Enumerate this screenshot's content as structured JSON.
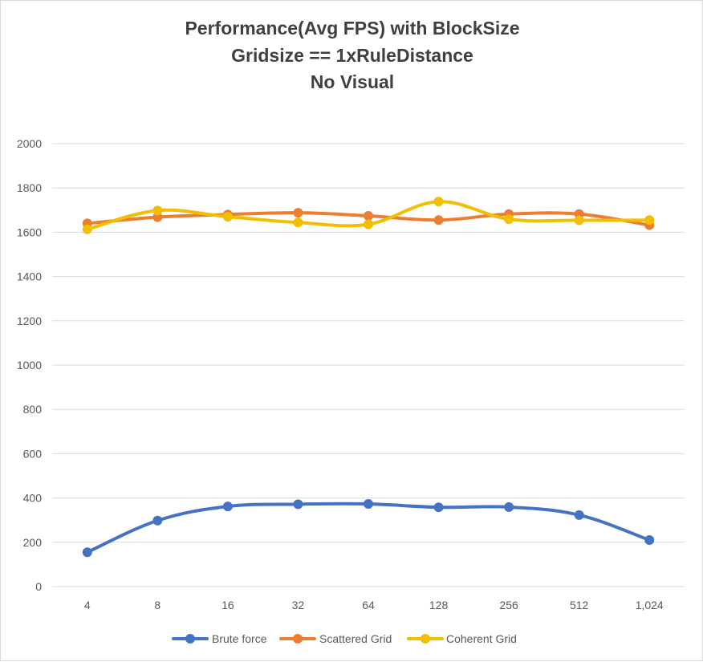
{
  "chart_data": {
    "type": "line",
    "title_lines": [
      "Performance(Avg FPS) with BlockSize",
      "Gridsize == 1xRuleDistance",
      "No Visual"
    ],
    "xlabel": "",
    "ylabel": "",
    "categories": [
      "4",
      "8",
      "16",
      "32",
      "64",
      "128",
      "256",
      "512",
      "1,024"
    ],
    "ylim": [
      0,
      2000
    ],
    "yticks": [
      "0",
      "200",
      "400",
      "600",
      "800",
      "1000",
      "1200",
      "1400",
      "1600",
      "1800",
      "2000"
    ],
    "grid": true,
    "legend_position": "bottom",
    "series": [
      {
        "name": "Brute force",
        "color": "#4472C4",
        "values": [
          155,
          298,
          362,
          372,
          373,
          358,
          359,
          323,
          210
        ]
      },
      {
        "name": "Scattered Grid",
        "color": "#ED7D31",
        "values": [
          1640,
          1668,
          1680,
          1688,
          1674,
          1655,
          1682,
          1682,
          1632
        ]
      },
      {
        "name": "Coherent Grid",
        "color": "#F2BE00",
        "values": [
          1613,
          1698,
          1670,
          1644,
          1636,
          1738,
          1659,
          1654,
          1655
        ]
      }
    ]
  }
}
